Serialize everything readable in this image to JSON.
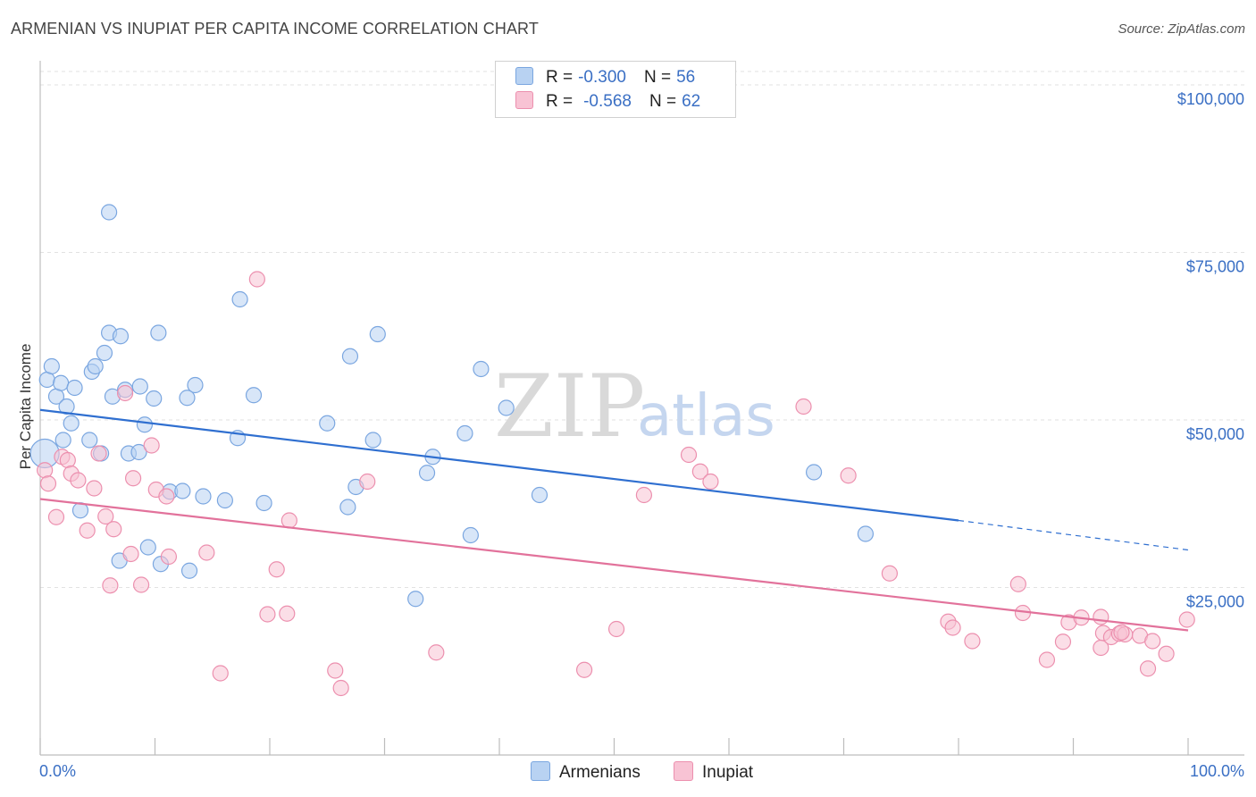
{
  "title": "ARMENIAN VS INUPIAT PER CAPITA INCOME CORRELATION CHART",
  "source": "Source: ZipAtlas.com",
  "watermark": {
    "zip": "ZIP",
    "atlas": "atlas"
  },
  "legend": {
    "rows": [
      {
        "r_label": "R =",
        "r_value": "-0.300",
        "n_label": "N =",
        "n_value": "56"
      },
      {
        "r_label": "R =",
        "r_value": "-0.568",
        "n_label": "N =",
        "n_value": "62"
      }
    ]
  },
  "bottom_legend": {
    "armenians": "Armenians",
    "inupiat": "Inupiat"
  },
  "colors": {
    "armenian_fill": "#b8d2f2",
    "armenian_stroke": "#7aa6e0",
    "armenian_line": "#2f6fd0",
    "inupiat_fill": "#f8c3d4",
    "inupiat_stroke": "#ec8fae",
    "inupiat_line": "#e2729b",
    "tick_text": "#3a6fc4"
  },
  "chart_data": {
    "type": "scatter",
    "title": "ARMENIAN VS INUPIAT PER CAPITA INCOME CORRELATION CHART",
    "xlabel": "",
    "ylabel": "Per Capita Income",
    "xlim": [
      0,
      100
    ],
    "ylim": [
      0,
      102000
    ],
    "x_tick_labels": [
      "0.0%",
      "100.0%"
    ],
    "y_ticks": [
      25000,
      50000,
      75000,
      100000
    ],
    "y_tick_labels": [
      "$25,000",
      "$50,000",
      "$75,000",
      "$100,000"
    ],
    "grid": true,
    "series": [
      {
        "name": "Armenians",
        "r": -0.3,
        "n": 56,
        "trend": {
          "x0": 0,
          "y0": 51500,
          "x1": 80,
          "y1": 35000,
          "dash_to_x": 100,
          "dash_to_y": 30600
        },
        "points": [
          [
            0.4,
            45000
          ],
          [
            0.6,
            56000
          ],
          [
            1.0,
            58000
          ],
          [
            1.4,
            53500
          ],
          [
            1.8,
            55500
          ],
          [
            2.0,
            47000
          ],
          [
            2.3,
            52000
          ],
          [
            2.7,
            49500
          ],
          [
            3.0,
            54800
          ],
          [
            3.5,
            36500
          ],
          [
            4.3,
            47000
          ],
          [
            4.5,
            57200
          ],
          [
            4.8,
            58000
          ],
          [
            5.3,
            45000
          ],
          [
            5.6,
            60000
          ],
          [
            6.0,
            63000
          ],
          [
            6.3,
            53500
          ],
          [
            6.9,
            29000
          ],
          [
            7.0,
            62500
          ],
          [
            7.4,
            54500
          ],
          [
            7.7,
            45000
          ],
          [
            8.6,
            45200
          ],
          [
            8.7,
            55000
          ],
          [
            9.1,
            49300
          ],
          [
            9.4,
            31000
          ],
          [
            9.9,
            53200
          ],
          [
            10.3,
            63000
          ],
          [
            10.5,
            28500
          ],
          [
            11.3,
            39300
          ],
          [
            12.4,
            39400
          ],
          [
            12.8,
            53300
          ],
          [
            13.0,
            27500
          ],
          [
            13.5,
            55200
          ],
          [
            14.2,
            38600
          ],
          [
            16.1,
            38000
          ],
          [
            17.2,
            47300
          ],
          [
            17.4,
            68000
          ],
          [
            18.6,
            53700
          ],
          [
            19.5,
            37600
          ],
          [
            25.0,
            49500
          ],
          [
            26.8,
            37000
          ],
          [
            27.0,
            59500
          ],
          [
            27.5,
            40000
          ],
          [
            29.0,
            47000
          ],
          [
            29.4,
            62800
          ],
          [
            32.7,
            23300
          ],
          [
            33.7,
            42100
          ],
          [
            34.2,
            44500
          ],
          [
            37.0,
            48000
          ],
          [
            37.5,
            32800
          ],
          [
            38.4,
            57600
          ],
          [
            40.6,
            51800
          ],
          [
            43.5,
            38800
          ],
          [
            6.0,
            81000
          ],
          [
            67.4,
            42200
          ],
          [
            71.9,
            33000
          ]
        ]
      },
      {
        "name": "Inupiat",
        "r": -0.568,
        "n": 62,
        "trend": {
          "x0": 0,
          "y0": 38200,
          "x1": 100,
          "y1": 18600
        },
        "points": [
          [
            0.4,
            42500
          ],
          [
            0.7,
            40500
          ],
          [
            1.4,
            35500
          ],
          [
            1.9,
            44500
          ],
          [
            2.4,
            44000
          ],
          [
            2.7,
            42000
          ],
          [
            3.3,
            41000
          ],
          [
            4.1,
            33500
          ],
          [
            4.7,
            39800
          ],
          [
            5.1,
            45000
          ],
          [
            5.7,
            35600
          ],
          [
            6.1,
            25300
          ],
          [
            6.4,
            33700
          ],
          [
            7.4,
            54000
          ],
          [
            7.9,
            30000
          ],
          [
            8.1,
            41300
          ],
          [
            8.8,
            25400
          ],
          [
            9.7,
            46200
          ],
          [
            10.1,
            39600
          ],
          [
            11.0,
            38600
          ],
          [
            11.2,
            29600
          ],
          [
            14.5,
            30200
          ],
          [
            15.7,
            12200
          ],
          [
            18.9,
            71000
          ],
          [
            19.8,
            21000
          ],
          [
            20.6,
            27700
          ],
          [
            21.5,
            21100
          ],
          [
            21.7,
            35000
          ],
          [
            25.7,
            12600
          ],
          [
            26.2,
            10000
          ],
          [
            28.5,
            40800
          ],
          [
            34.5,
            15300
          ],
          [
            47.4,
            12700
          ],
          [
            50.2,
            18800
          ],
          [
            52.6,
            38800
          ],
          [
            56.5,
            44800
          ],
          [
            57.5,
            42300
          ],
          [
            58.4,
            40800
          ],
          [
            66.5,
            52000
          ],
          [
            70.4,
            41700
          ],
          [
            74.0,
            27100
          ],
          [
            79.1,
            19900
          ],
          [
            79.5,
            19000
          ],
          [
            81.2,
            17000
          ],
          [
            85.2,
            25500
          ],
          [
            85.6,
            21200
          ],
          [
            87.7,
            14200
          ],
          [
            89.1,
            16900
          ],
          [
            89.6,
            19800
          ],
          [
            90.7,
            20500
          ],
          [
            92.4,
            16000
          ],
          [
            92.4,
            20600
          ],
          [
            92.6,
            18200
          ],
          [
            93.3,
            17600
          ],
          [
            94.0,
            18100
          ],
          [
            94.5,
            18000
          ],
          [
            95.8,
            17800
          ],
          [
            96.5,
            12900
          ],
          [
            96.9,
            17000
          ],
          [
            98.1,
            15100
          ],
          [
            99.9,
            20200
          ],
          [
            94.2,
            18300
          ]
        ]
      }
    ]
  }
}
